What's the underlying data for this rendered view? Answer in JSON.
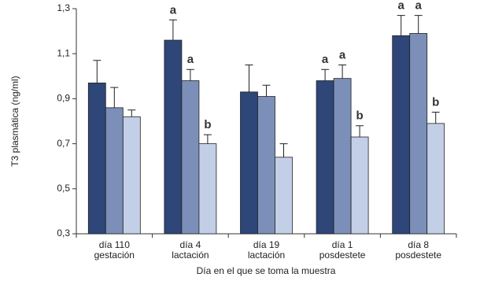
{
  "chart_data": {
    "type": "bar",
    "ylabel": "T3 plasmática (ng/ml)",
    "xlabel": "Día en el que se toma la muestra",
    "categories": [
      [
        "día 110",
        "gestación"
      ],
      [
        "día 4",
        "lactación"
      ],
      [
        "día 19",
        "lactación"
      ],
      [
        "día 1",
        "posdestete"
      ],
      [
        "día 8",
        "posdestete"
      ]
    ],
    "series": [
      {
        "color": "#2e4678",
        "values": [
          0.97,
          1.16,
          0.93,
          0.98,
          1.18
        ],
        "errors": [
          0.1,
          0.09,
          0.12,
          0.05,
          0.09
        ],
        "letters": [
          null,
          "a",
          null,
          "a",
          "a"
        ]
      },
      {
        "color": "#7b8fb8",
        "values": [
          0.86,
          0.98,
          0.91,
          0.99,
          1.19
        ],
        "errors": [
          0.09,
          0.05,
          0.05,
          0.06,
          0.08
        ],
        "letters": [
          null,
          "a",
          null,
          "a",
          "a"
        ]
      },
      {
        "color": "#c3cfe6",
        "values": [
          0.82,
          0.7,
          0.64,
          0.73,
          0.79
        ],
        "errors": [
          0.03,
          0.04,
          0.06,
          0.05,
          0.05
        ],
        "letters": [
          null,
          "b",
          null,
          "b",
          "b"
        ]
      }
    ],
    "ylim": [
      0.3,
      1.3
    ],
    "yticks": [
      {
        "value": 0.3,
        "label": "0,3"
      },
      {
        "value": 0.5,
        "label": "0,5"
      },
      {
        "value": 0.7,
        "label": "0,7"
      },
      {
        "value": 0.9,
        "label": "0,9"
      },
      {
        "value": 1.1,
        "label": "1,1"
      },
      {
        "value": 1.3,
        "label": "1,3"
      }
    ]
  }
}
